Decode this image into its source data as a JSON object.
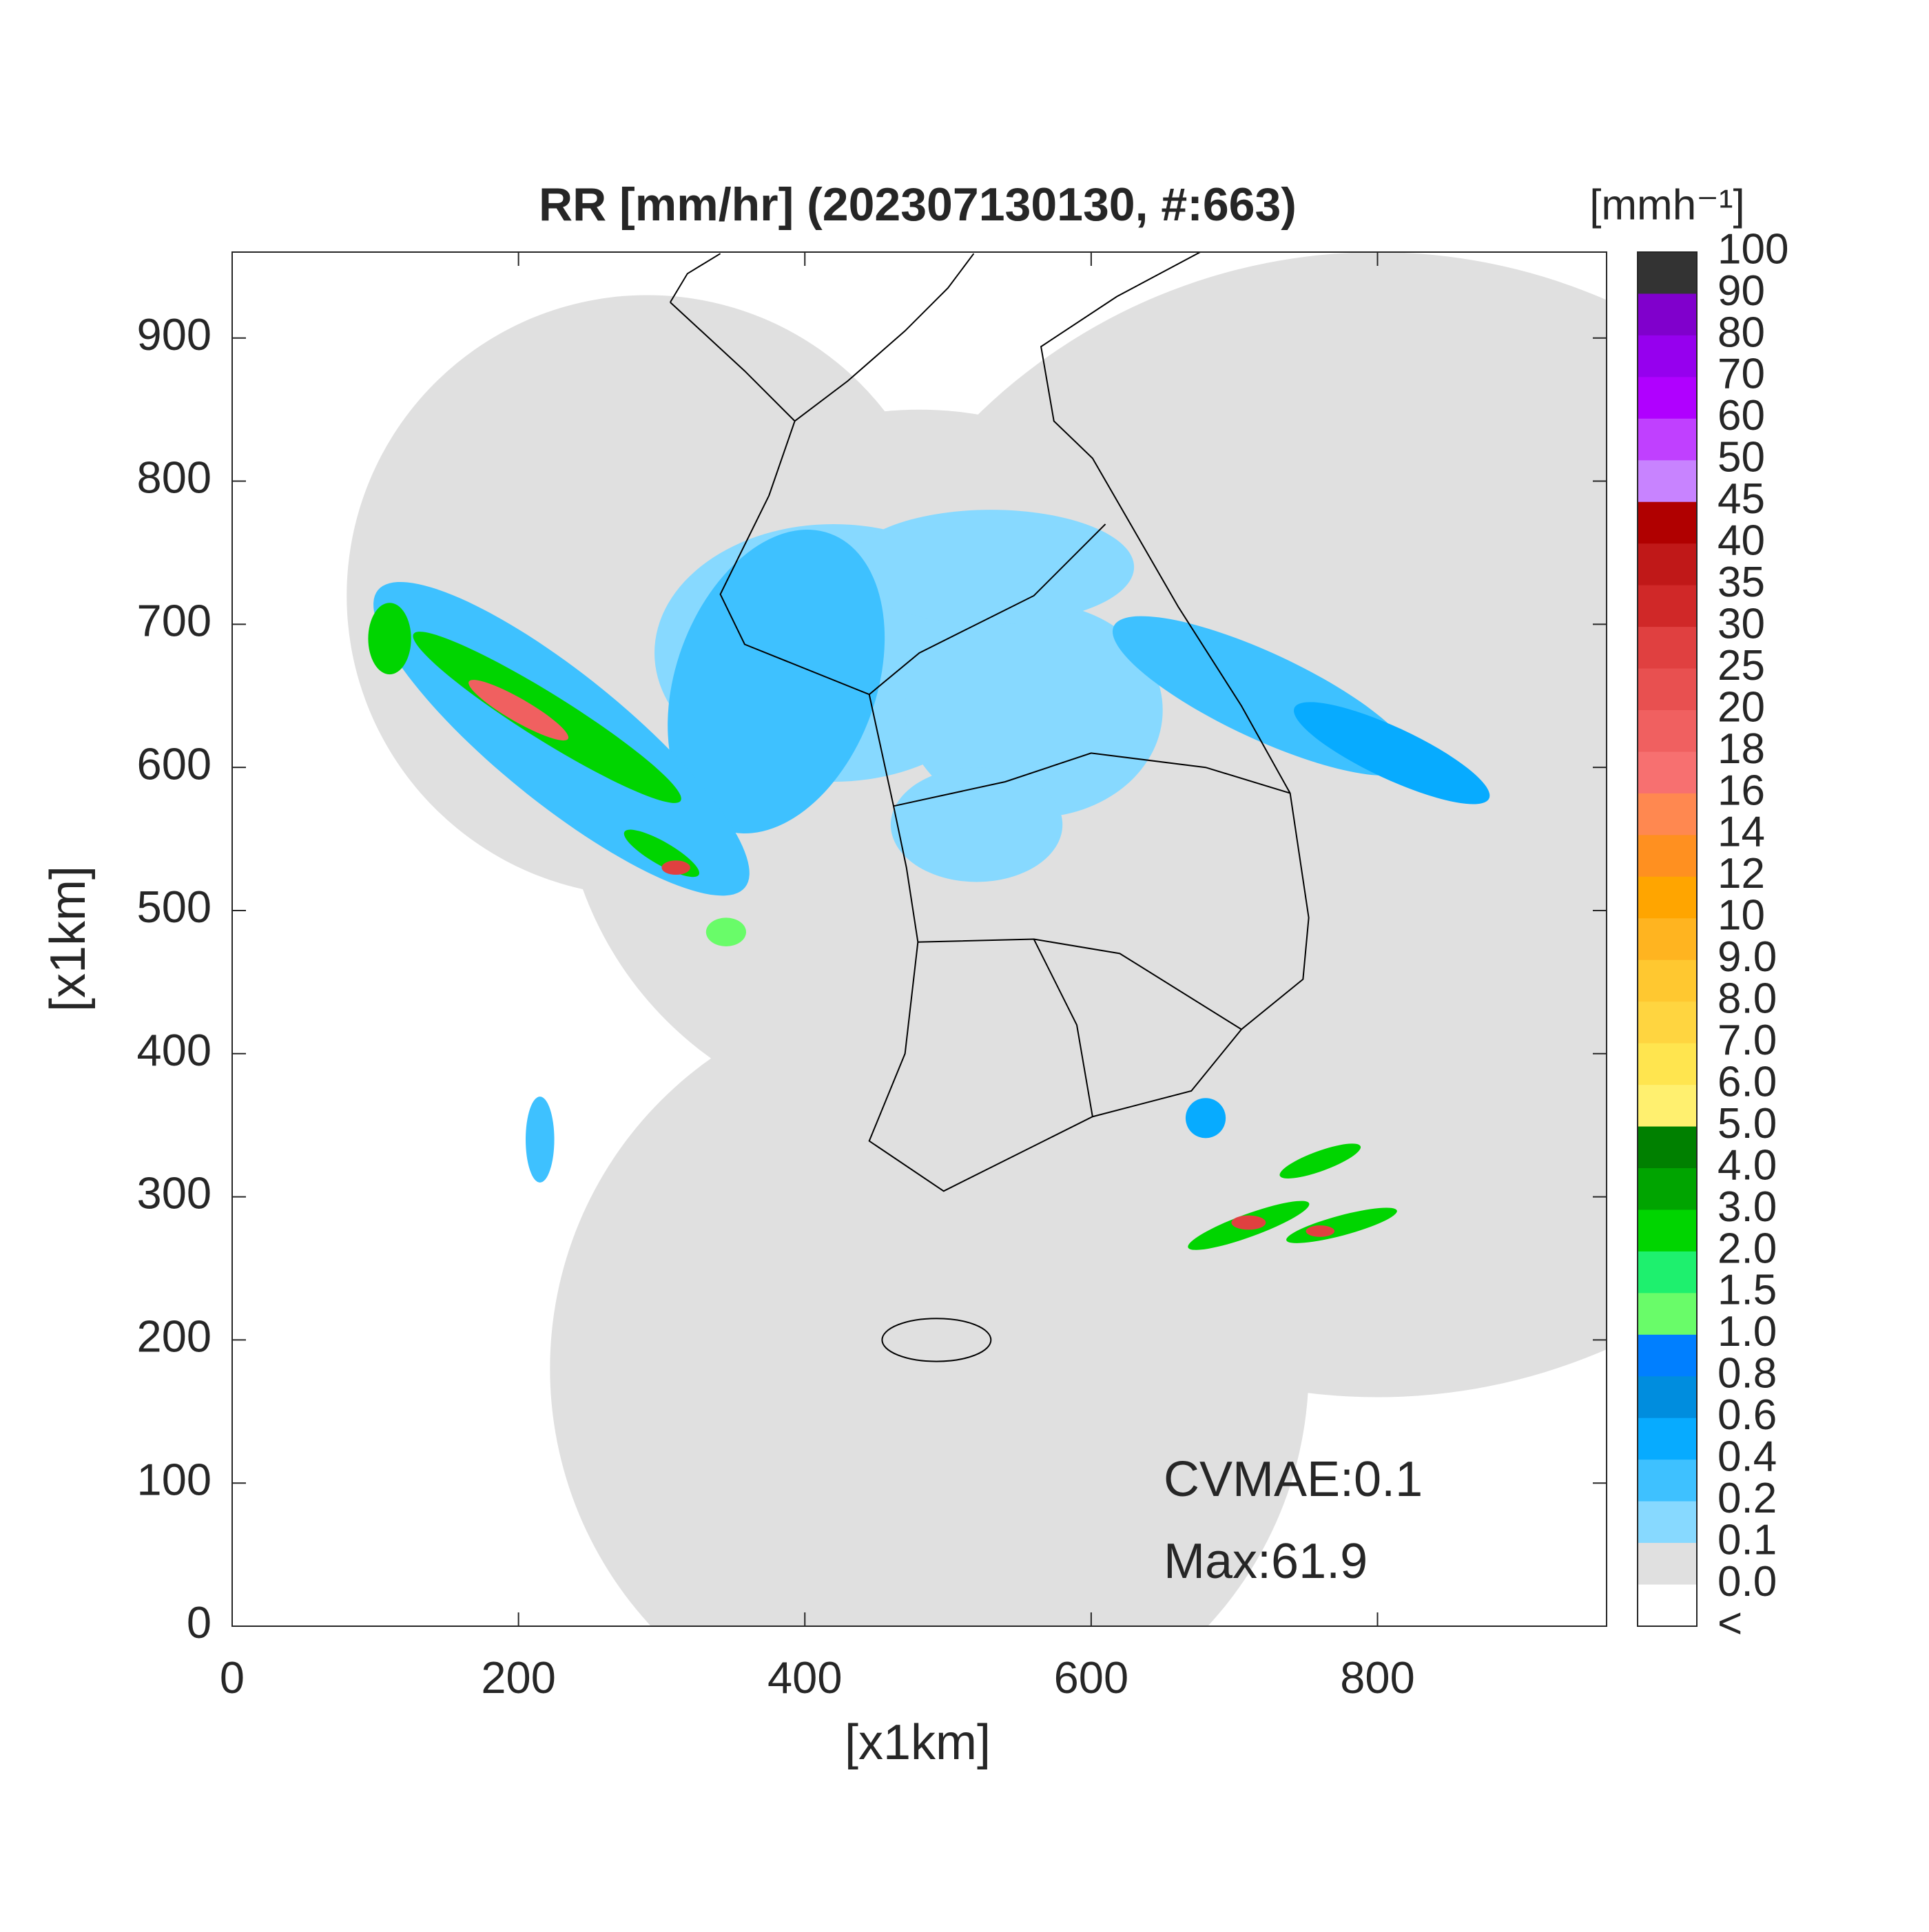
{
  "chart_data": {
    "type": "map",
    "title": "RR [mm/hr] (202307130130, #:663)",
    "x_label": "[x1km]",
    "y_label": "[x1km]",
    "xlim": [
      0,
      960
    ],
    "ylim": [
      0,
      960
    ],
    "xticks": [
      0,
      200,
      400,
      600,
      800
    ],
    "yticks": [
      0,
      100,
      200,
      300,
      400,
      500,
      600,
      700,
      800,
      900
    ],
    "annotations": [
      "CVMAE:0.1",
      "Max:61.9"
    ],
    "colorbar": {
      "title": "[mmh⁻¹]",
      "ticks": [
        100,
        90,
        80,
        70,
        60,
        50,
        45,
        40,
        35,
        30,
        25,
        20,
        18,
        16,
        14,
        12,
        10,
        {
          "value": 9,
          "label": "9.0"
        },
        {
          "value": 8,
          "label": "8.0"
        },
        {
          "value": 7,
          "label": "7.0"
        },
        {
          "value": 6,
          "label": "6.0"
        },
        {
          "value": 5,
          "label": "5.0"
        },
        {
          "value": 4,
          "label": "4.0"
        },
        {
          "value": 3,
          "label": "3.0"
        },
        {
          "value": 2,
          "label": "2.0"
        },
        1.5,
        {
          "value": 1,
          "label": "1.0"
        },
        0.8,
        0.6,
        0.4,
        0.2,
        0.1,
        {
          "value": 0,
          "label": "0.0"
        },
        "<"
      ],
      "colors": [
        "#333333",
        "#8000cc",
        "#9600ee",
        "#b000ff",
        "#c040ff",
        "#c883ff",
        "#b00000",
        "#c01818",
        "#d02828",
        "#e04040",
        "#e85050",
        "#f06060",
        "#f77070",
        "#ff8850",
        "#ff9020",
        "#ffa500",
        "#ffb420",
        "#ffc830",
        "#ffd540",
        "#ffe54f",
        "#fff06f",
        "#008000",
        "#00a400",
        "#00d500",
        "#1ef06e",
        "#69fc69",
        "#007fff",
        "#008dde",
        "#07abff",
        "#3ec1ff",
        "#87d9ff",
        "#e0e0e0",
        "#ffffff"
      ]
    }
  }
}
